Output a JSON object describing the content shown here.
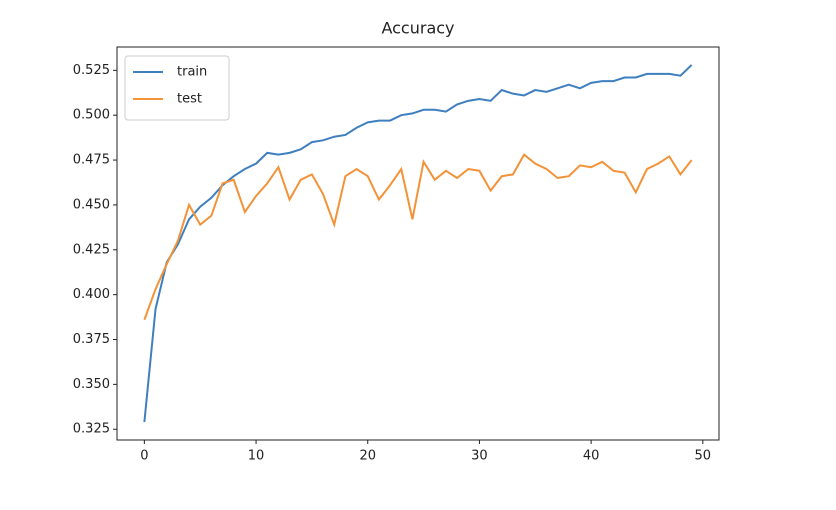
{
  "chart_data": {
    "type": "line",
    "title": "Accuracy",
    "x": [
      0,
      1,
      2,
      3,
      4,
      5,
      6,
      7,
      8,
      9,
      10,
      11,
      12,
      13,
      14,
      15,
      16,
      17,
      18,
      19,
      20,
      21,
      22,
      23,
      24,
      25,
      26,
      27,
      28,
      29,
      30,
      31,
      32,
      33,
      34,
      35,
      36,
      37,
      38,
      39,
      40,
      41,
      42,
      43,
      44,
      45,
      46,
      47,
      48,
      49
    ],
    "series": [
      {
        "name": "train",
        "color": "#3f7fbf",
        "values": [
          0.329,
          0.392,
          0.418,
          0.428,
          0.442,
          0.449,
          0.454,
          0.461,
          0.466,
          0.47,
          0.473,
          0.479,
          0.478,
          0.479,
          0.481,
          0.485,
          0.486,
          0.488,
          0.489,
          0.493,
          0.496,
          0.497,
          0.497,
          0.5,
          0.501,
          0.503,
          0.503,
          0.502,
          0.506,
          0.508,
          0.509,
          0.508,
          0.514,
          0.512,
          0.511,
          0.514,
          0.513,
          0.515,
          0.517,
          0.515,
          0.518,
          0.519,
          0.519,
          0.521,
          0.521,
          0.523,
          0.523,
          0.523,
          0.522,
          0.528
        ]
      },
      {
        "name": "test",
        "color": "#f39237",
        "values": [
          0.386,
          0.403,
          0.417,
          0.43,
          0.45,
          0.439,
          0.444,
          0.462,
          0.464,
          0.446,
          0.455,
          0.462,
          0.471,
          0.453,
          0.464,
          0.467,
          0.456,
          0.439,
          0.466,
          0.47,
          0.466,
          0.453,
          0.461,
          0.47,
          0.442,
          0.474,
          0.464,
          0.469,
          0.465,
          0.47,
          0.469,
          0.458,
          0.466,
          0.467,
          0.478,
          0.473,
          0.47,
          0.465,
          0.466,
          0.472,
          0.471,
          0.474,
          0.469,
          0.468,
          0.457,
          0.47,
          0.473,
          0.477,
          0.467,
          0.475
        ]
      }
    ],
    "xlim": [
      -2.45,
      51.45
    ],
    "xticks": [
      0,
      10,
      20,
      30,
      40,
      50
    ],
    "ylim": [
      0.319,
      0.538
    ],
    "yticks": [
      0.325,
      {
        "value": 0.35,
        "label": "0.350"
      },
      0.375,
      {
        "value": 0.4,
        "label": "0.400"
      },
      0.425,
      {
        "value": 0.45,
        "label": "0.450"
      },
      0.475,
      {
        "value": 0.5,
        "label": "0.500"
      },
      0.525
    ],
    "legend": "upper left",
    "grid": false
  }
}
